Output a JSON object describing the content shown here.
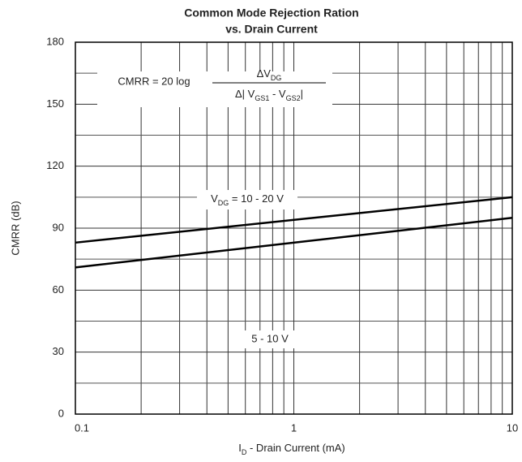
{
  "chart_data": {
    "type": "line",
    "title": [
      "Common Mode Rejection Ration",
      "vs. Drain Current"
    ],
    "xlabel": [
      "I",
      "D",
      " - Drain Current (mA)"
    ],
    "ylabel": "CMRR (dB)",
    "xscale": "log",
    "x": [
      0.1,
      10
    ],
    "series": [
      {
        "name": [
          "V",
          "DG",
          " = 10 - 20 V"
        ],
        "color": "#000000",
        "values": [
          83,
          105
        ]
      },
      {
        "name": "5 - 10 V",
        "color": "#000000",
        "values": [
          71,
          95
        ]
      }
    ],
    "xlim": [
      0.1,
      10
    ],
    "xticks": [
      0.1,
      1,
      10
    ],
    "x_minor_grid": [
      0.2,
      0.3,
      0.4,
      0.5,
      0.6,
      0.7,
      0.8,
      0.9,
      2,
      3,
      4,
      5,
      6,
      7,
      8,
      9
    ],
    "ylim": [
      0,
      180
    ],
    "yticks": [
      0,
      30,
      60,
      90,
      120,
      150,
      180
    ],
    "y_minor_grid": [
      15,
      45,
      75,
      105,
      135,
      165
    ],
    "grid": true,
    "formula": {
      "lhs": "CMRR = 20 log",
      "numerator": [
        "ΔV",
        "DG"
      ],
      "denominator": [
        "Δ| V",
        "GS1",
        " - V",
        "GS2",
        "|"
      ]
    }
  }
}
